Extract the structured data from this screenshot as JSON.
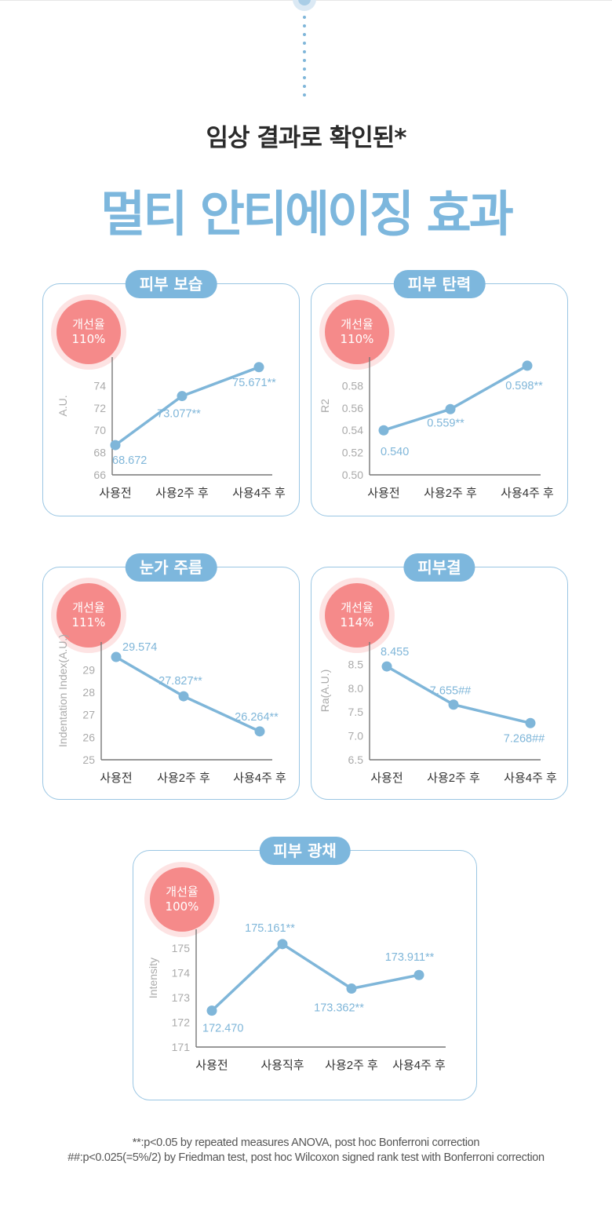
{
  "header": {
    "subtitle": "임상 결과로 확인된*",
    "title": "멀티 안티에이징 효과"
  },
  "badge_label": "개선율",
  "colors": {
    "accent": "#7db7dd",
    "line": "#7fb6d9",
    "badge": "#f58a8a",
    "axis_text": "#aaaaaa"
  },
  "chart_data": [
    {
      "type": "line",
      "title": "피부 보습",
      "improvement": "110%",
      "ylabel": "A.U.",
      "categories": [
        "사용전",
        "사용2주 후",
        "사용4주 후"
      ],
      "values": [
        68.672,
        73.077,
        75.671
      ],
      "value_labels": [
        "68.672",
        "73.077**",
        "75.671**"
      ],
      "yticks": [
        66,
        68,
        70,
        72,
        74
      ],
      "ylim": [
        66,
        76.5
      ]
    },
    {
      "type": "line",
      "title": "피부 탄력",
      "improvement": "110%",
      "ylabel": "R2",
      "categories": [
        "사용전",
        "사용2주 후",
        "사용4주 후"
      ],
      "values": [
        0.54,
        0.559,
        0.598
      ],
      "value_labels": [
        "0.540",
        "0.559**",
        "0.598**"
      ],
      "yticks": [
        "0.50",
        "0.52",
        "0.54",
        "0.56",
        "0.58"
      ],
      "ylim": [
        0.5,
        0.605
      ]
    },
    {
      "type": "line",
      "title": "눈가 주름",
      "improvement": "111%",
      "ylabel": "Indentation Index(A.U.)",
      "categories": [
        "사용전",
        "사용2주 후",
        "사용4주 후"
      ],
      "values": [
        29.574,
        27.827,
        26.264
      ],
      "value_labels": [
        "29.574",
        "27.827**",
        "26.264**"
      ],
      "yticks": [
        25,
        26,
        27,
        28,
        29
      ],
      "ylim": [
        25,
        30.1
      ]
    },
    {
      "type": "line",
      "title": "피부결",
      "improvement": "114%",
      "ylabel": "Ra(A.U.)",
      "categories": [
        "사용전",
        "사용2주 후",
        "사용4주 후"
      ],
      "values": [
        8.455,
        7.655,
        7.268
      ],
      "value_labels": [
        "8.455",
        "7.655##",
        "7.268##"
      ],
      "yticks": [
        "6.5",
        "7.0",
        "7.5",
        "8.0",
        "8.5"
      ],
      "ylim": [
        6.5,
        8.9
      ]
    },
    {
      "type": "line",
      "title": "피부 광채",
      "improvement": "100%",
      "ylabel": "Intensity",
      "categories": [
        "사용전",
        "사용직후",
        "사용2주 후",
        "사용4주 후"
      ],
      "values": [
        172.47,
        175.161,
        173.362,
        173.911
      ],
      "value_labels": [
        "172.470",
        "175.161**",
        "173.362**",
        "173.911**"
      ],
      "yticks": [
        171,
        172,
        173,
        174,
        175
      ],
      "ylim": [
        171,
        175.6
      ]
    }
  ],
  "footnotes": [
    "**:p<0.05 by repeated measures ANOVA, post hoc Bonferroni correction",
    "##:p<0.025(=5%/2) by Friedman test, post hoc Wilcoxon signed rank test with Bonferroni correction"
  ]
}
